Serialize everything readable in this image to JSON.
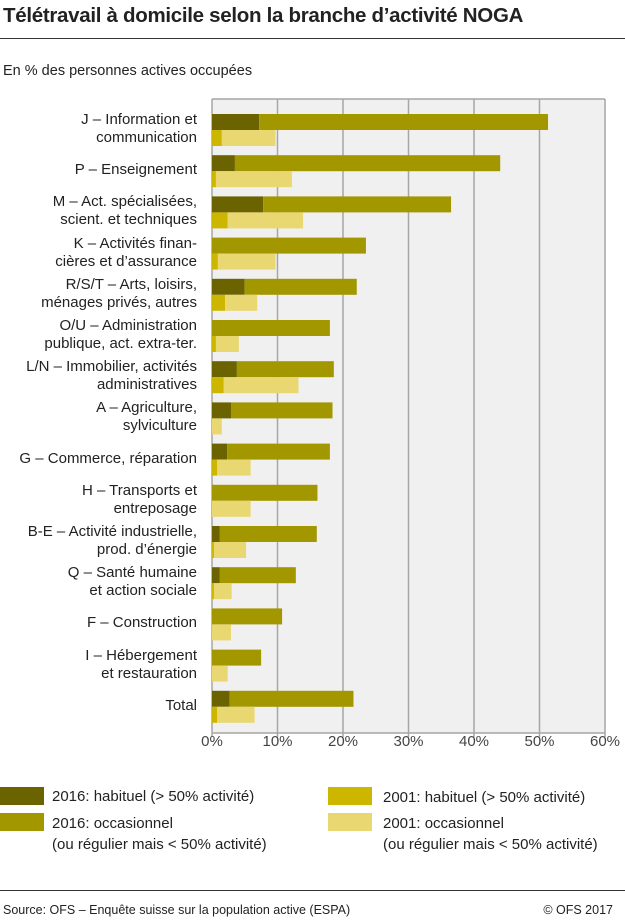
{
  "title": "Télétravail à domicile selon la branche d’activité NOGA",
  "subtitle": "En % des personnes actives occupées",
  "source": "Source: OFS – Enquête suisse sur la population active (ESPA)",
  "copyright": "© OFS 2017",
  "colors": {
    "hab2016": "#6b6300",
    "occ2016": "#a39700",
    "hab2001": "#cdb600",
    "occ2001": "#e9d872",
    "plot_bg": "#f0f0f0",
    "grid": "#a6a6a6"
  },
  "chart_data": {
    "type": "bar",
    "orientation": "horizontal",
    "stacked": true,
    "title": "Télétravail à domicile selon la branche d’activité NOGA",
    "xlabel": "",
    "ylabel": "",
    "xlim": [
      0,
      60
    ],
    "x_ticks": [
      "0%",
      "10%",
      "20%",
      "30%",
      "40%",
      "50%",
      "60%"
    ],
    "grid": true,
    "legend_position": "bottom",
    "categories": [
      "J – Information et\ncommunication",
      "P – Enseignement",
      "M – Act. spécialisées,\nscient. et techniques",
      "K – Activités finan-\ncières et d’assurance",
      "R/S/T – Arts, loisirs,\nménages privés, autres",
      "O/U – Administration\npublique, act. extra-ter.",
      "L/N – Immobilier, activités\nadministratives",
      "A – Agriculture,\nsylviculture",
      "G – Commerce, réparation",
      "H – Transports et\nentreposage",
      "B-E – Activité industrielle,\nprod. d’énergie",
      "Q – Santé humaine\net action sociale",
      "F – Construction",
      "I – Hébergement\net restauration",
      "Total"
    ],
    "series": [
      {
        "name": "2016: habituel (> 50% activité)",
        "year": "2016",
        "values": [
          7.2,
          3.5,
          7.8,
          0,
          5.0,
          0,
          3.8,
          2.9,
          2.3,
          0,
          1.2,
          1.2,
          0,
          0,
          2.7
        ]
      },
      {
        "name": "2016: occasionnel\n(ou régulier mais < 50% activité)",
        "year": "2016",
        "values": [
          44.1,
          40.5,
          28.7,
          23.5,
          17.1,
          18.0,
          14.8,
          15.5,
          15.7,
          16.1,
          14.8,
          11.6,
          10.7,
          7.5,
          18.9
        ]
      },
      {
        "name": "2001: habituel (> 50% activité)",
        "year": "2001",
        "values": [
          1.5,
          0.6,
          2.4,
          0.9,
          2.0,
          0.6,
          1.8,
          0,
          0.8,
          0,
          0.3,
          0.3,
          0,
          0,
          0.8
        ]
      },
      {
        "name": "2001: occasionnel\n(ou régulier mais < 50% activité)",
        "year": "2001",
        "values": [
          8.2,
          11.6,
          11.5,
          8.8,
          4.9,
          3.5,
          11.4,
          1.5,
          5.1,
          5.9,
          4.9,
          2.7,
          2.9,
          2.4,
          5.7
        ]
      }
    ]
  }
}
